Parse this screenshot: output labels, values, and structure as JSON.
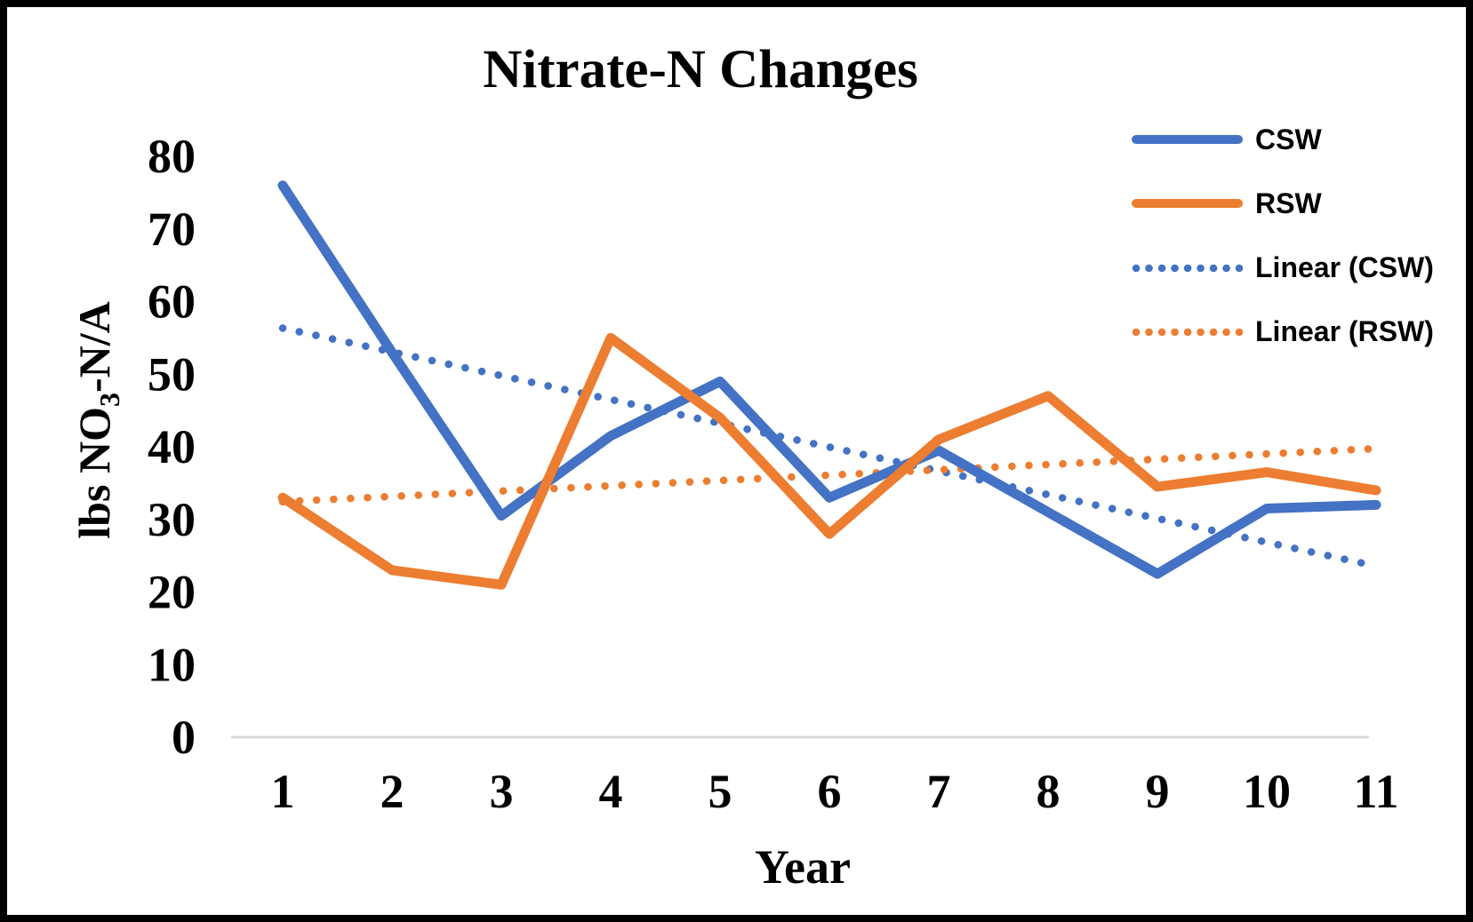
{
  "frame": {
    "background": "#ffffff",
    "border_color": "#000000"
  },
  "chart_data": {
    "type": "line",
    "title": "Nitrate-N Changes",
    "xlabel": "Year",
    "ylabel": {
      "prefix": "lbs NO",
      "subscript": "3",
      "suffix": "-N/A"
    },
    "categories": [
      1,
      2,
      3,
      4,
      5,
      6,
      7,
      8,
      9,
      10,
      11
    ],
    "y_ticks": [
      0,
      10,
      20,
      30,
      40,
      50,
      60,
      70,
      80
    ],
    "ylim": [
      0,
      80
    ],
    "grid": "off",
    "axis_line_color": "#d9d9d9",
    "series": [
      {
        "name": "CSW",
        "color": "#4472C4",
        "style": "solid",
        "values": [
          76,
          53,
          30.5,
          41.5,
          49,
          33,
          39.5,
          31,
          22.5,
          31.5,
          32
        ]
      },
      {
        "name": "RSW",
        "color": "#ED7D31",
        "style": "solid",
        "values": [
          33,
          23,
          21,
          55,
          44,
          28,
          41,
          47,
          34.5,
          36.5,
          34
        ]
      },
      {
        "name": "Linear (CSW)",
        "color": "#4472C4",
        "style": "dotted",
        "trend_of": "CSW"
      },
      {
        "name": "Linear (RSW)",
        "color": "#ED7D31",
        "style": "dotted",
        "trend_of": "RSW"
      }
    ],
    "legend": {
      "position": "top-right",
      "labels": [
        "CSW",
        "RSW",
        "Linear (CSW)",
        "Linear (RSW)"
      ]
    }
  }
}
